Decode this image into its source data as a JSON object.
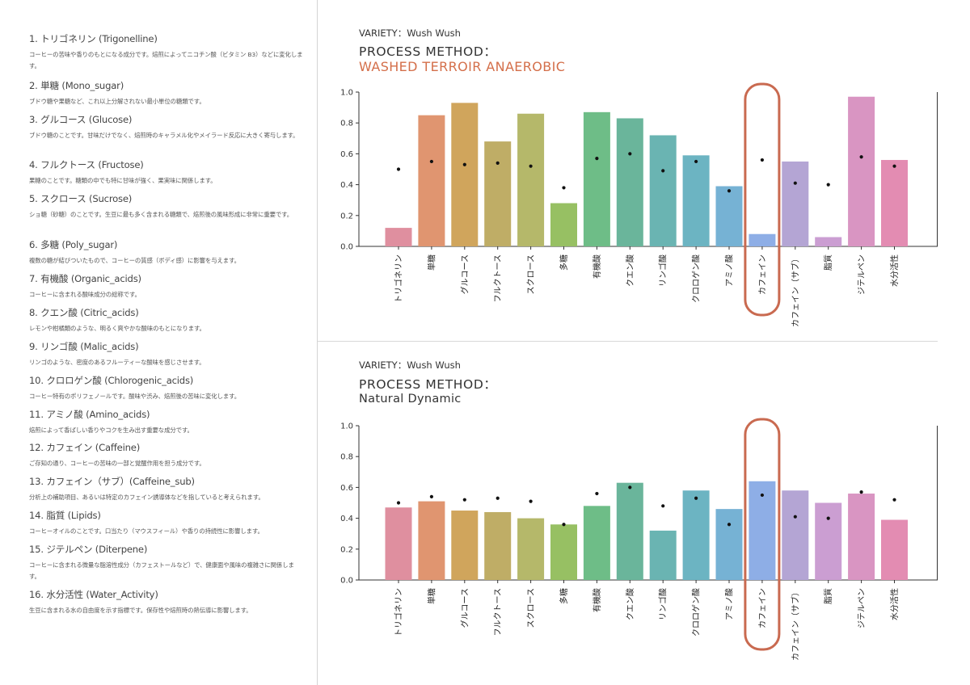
{
  "glossary": [
    {
      "title": "1. トリゴネリン (Trigonelline)",
      "desc": "コーヒーの苦味や香りのもとになる成分です。焙煎によってニコチン酸（ビタミン B3）などに変化します。"
    },
    {
      "title": "2. 単糖 (Mono_sugar)",
      "desc": "ブドウ糖や果糖など、これ以上分解されない最小単位の糖類です。"
    },
    {
      "title": "3. グルコース (Glucose)",
      "desc": "ブドウ糖のことです。甘味だけでなく、焙煎時のキャラメル化やメイラード反応に大きく寄与します。"
    },
    {
      "title": "4. フルクトース (Fructose)",
      "desc": "果糖のことです。糖類の中でも特に甘味が強く、果実味に関係します。"
    },
    {
      "title": "5. スクロース (Sucrose)",
      "desc": "ショ糖（砂糖）のことです。生豆に最も多く含まれる糖類で、焙煎後の風味形成に非常に重要です。"
    },
    {
      "title": "6. 多糖 (Poly_sugar)",
      "desc": "複数の糖が結びついたもので、コーヒーの質感（ボディ感）に影響を与えます。"
    },
    {
      "title": "7. 有機酸 (Organic_acids)",
      "desc": "コーヒーに含まれる酸味成分の総称です。"
    },
    {
      "title": "8. クエン酸 (Citric_acids)",
      "desc": "レモンや柑橘類のような、明るく爽やかな酸味のもとになります。"
    },
    {
      "title": "9. リンゴ酸 (Malic_acids)",
      "desc": "リンゴのような、密度のあるフルーティーな酸味を感じさせます。"
    },
    {
      "title": "10. クロロゲン酸 (Chlorogenic_acids)",
      "desc": "コーヒー特有のポリフェノールです。酸味や渋み、焙煎後の苦味に変化します。"
    },
    {
      "title": "11. アミノ酸 (Amino_acids)",
      "desc": "焙煎によって香ばしい香りやコクを生み出す重要な成分です。"
    },
    {
      "title": "12. カフェイン (Caffeine)",
      "desc": "ご存知の通り、コーヒーの苦味の一部と覚醒作用を担う成分です。"
    },
    {
      "title": "13. カフェイン（サブ）(Caffeine_sub)",
      "desc": "分析上の補助項目、あるいは特定のカフェイン誘導体などを指していると考えられます。"
    },
    {
      "title": "14. 脂質 (Lipids)",
      "desc": "コーヒーオイルのことです。口当たり（マウスフィール）や香りの持続性に影響します。"
    },
    {
      "title": "15. ジテルペン (Diterpene)",
      "desc": "コーヒーに含まれる微量な脂溶性成分（カフェストールなど）で、健康面や風味の複雑さに関係します。"
    },
    {
      "title": "16. 水分活性 (Water_Activity)",
      "desc": "生豆に含まれる水の自由度を示す指標です。保存性や焙煎時の熱伝導に影響します。"
    }
  ],
  "sections": [
    {
      "variety": "VARIETY：Wush Wush",
      "process_label": "PROCESS METHOD：",
      "process_value": "WASHED TERROIR ANAEROBIC"
    },
    {
      "variety": "VARIETY：Wush Wush",
      "process_label": "PROCESS METHOD：",
      "process_value": "Natural Dynamic"
    }
  ],
  "colors": {
    "bars": [
      "#df8f9f",
      "#e09570",
      "#d0a55c",
      "#bfad66",
      "#b5b86a",
      "#97c063",
      "#6ebd87",
      "#6ab59b",
      "#6ab4b2",
      "#6cb4c2",
      "#76b2d4",
      "#8eaee6",
      "#b4a5d4",
      "#cb9ed2",
      "#d995c2",
      "#e38cb2"
    ],
    "highlight": "#c96a50",
    "method_accent": "#d46f4a",
    "dot": "#111111",
    "axis": "#333333"
  },
  "chart_data": [
    {
      "type": "bar",
      "categories": [
        "トリゴネリン",
        "単糖",
        "グルコース",
        "フルクトース",
        "スクロース",
        "多糖",
        "有機酸",
        "クエン酸",
        "リンゴ酸",
        "クロロゲン酸",
        "アミノ酸",
        "カフェイン",
        "カフェイン（サブ）",
        "脂質",
        "ジテルペン",
        "水分活性"
      ],
      "series": [
        {
          "type": "bar",
          "values": [
            0.12,
            0.85,
            0.93,
            0.68,
            0.86,
            0.28,
            0.87,
            0.83,
            0.72,
            0.59,
            0.39,
            0.08,
            0.55,
            0.06,
            0.97,
            0.56
          ]
        },
        {
          "type": "scatter",
          "values": [
            0.5,
            0.55,
            0.53,
            0.54,
            0.52,
            0.38,
            0.57,
            0.6,
            0.49,
            0.55,
            0.36,
            0.56,
            0.41,
            0.4,
            0.58,
            0.52
          ]
        }
      ],
      "ylim": [
        0,
        1.0
      ],
      "yticks": [
        "0.0",
        "0.2",
        "0.4",
        "0.6",
        "0.8",
        "1.0"
      ],
      "highlight_category": "カフェイン"
    },
    {
      "type": "bar",
      "categories": [
        "トリゴネリン",
        "単糖",
        "グルコース",
        "フルクトース",
        "スクロース",
        "多糖",
        "有機酸",
        "クエン酸",
        "リンゴ酸",
        "クロロゲン酸",
        "アミノ酸",
        "カフェイン",
        "カフェイン（サブ）",
        "脂質",
        "ジテルペン",
        "水分活性"
      ],
      "series": [
        {
          "type": "bar",
          "values": [
            0.47,
            0.51,
            0.45,
            0.44,
            0.4,
            0.36,
            0.48,
            0.63,
            0.32,
            0.58,
            0.46,
            0.64,
            0.58,
            0.5,
            0.56,
            0.39
          ]
        },
        {
          "type": "scatter",
          "values": [
            0.5,
            0.54,
            0.52,
            0.53,
            0.51,
            0.36,
            0.56,
            0.6,
            0.48,
            0.53,
            0.36,
            0.55,
            0.41,
            0.4,
            0.57,
            0.52
          ]
        }
      ],
      "ylim": [
        0,
        1.0
      ],
      "yticks": [
        "0.0",
        "0.2",
        "0.4",
        "0.6",
        "0.8",
        "1.0"
      ],
      "highlight_category": "カフェイン"
    }
  ]
}
